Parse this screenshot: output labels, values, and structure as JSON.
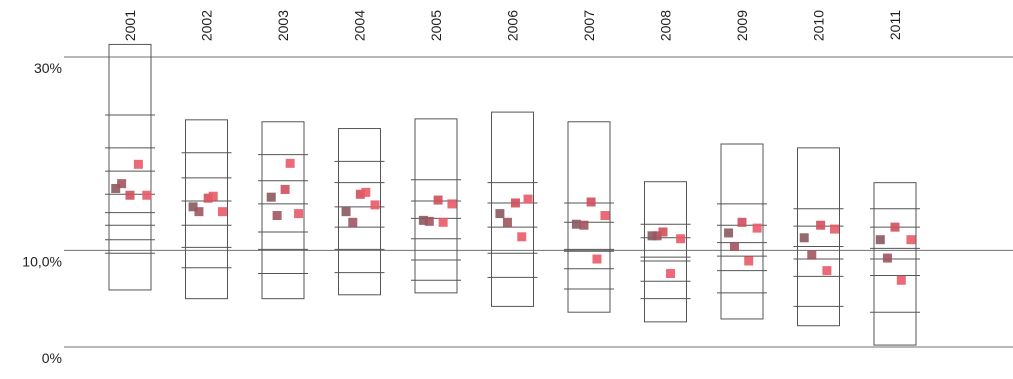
{
  "chart_data": {
    "type": "scatter",
    "title": "",
    "xlabel": "",
    "ylabel": "",
    "ylim": [
      0,
      30
    ],
    "y_axis_labels": [
      {
        "value": 30,
        "label": "30%"
      },
      {
        "value": 10,
        "label": "10,0%"
      },
      {
        "value": 0,
        "label": "0%"
      }
    ],
    "reference_lines": [
      30,
      10,
      0
    ],
    "categories": [
      "2001",
      "2002",
      "2003",
      "2004",
      "2005",
      "2006",
      "2007",
      "2008",
      "2009",
      "2010",
      "2011"
    ],
    "series_colors": [
      "#8a5a5e",
      "#a05460",
      "#cf4f5c",
      "#e85a68"
    ],
    "groups": [
      {
        "box": [
          5.9,
          31.3
        ],
        "ticks": [
          24.0,
          20.6,
          18.2,
          15.8,
          13.9,
          12.6,
          11.1,
          9.7
        ],
        "points": [
          [
            0.16,
            16.4
          ],
          [
            0.3,
            16.9
          ],
          [
            0.5,
            15.7
          ],
          [
            0.7,
            18.9
          ],
          [
            0.9,
            15.7
          ]
        ]
      },
      {
        "box": [
          5.0,
          23.5
        ],
        "ticks": [
          20.1,
          17.5,
          15.1,
          12.6,
          10.3,
          8.2
        ],
        "points": [
          [
            0.18,
            14.5
          ],
          [
            0.32,
            14.0
          ],
          [
            0.54,
            15.4
          ],
          [
            0.66,
            15.6
          ],
          [
            0.88,
            14.0
          ]
        ]
      },
      {
        "box": [
          5.0,
          23.3
        ],
        "ticks": [
          19.9,
          17.2,
          14.8,
          11.9,
          10.1,
          7.6
        ],
        "points": [
          [
            0.22,
            15.5
          ],
          [
            0.36,
            13.6
          ],
          [
            0.55,
            16.3
          ],
          [
            0.67,
            19.0
          ],
          [
            0.87,
            13.8
          ]
        ]
      },
      {
        "box": [
          5.4,
          22.6
        ],
        "ticks": [
          19.2,
          17.0,
          14.5,
          12.4,
          10.1,
          7.7
        ],
        "points": [
          [
            0.18,
            14.0
          ],
          [
            0.34,
            12.9
          ],
          [
            0.52,
            15.8
          ],
          [
            0.65,
            16.0
          ],
          [
            0.87,
            14.7
          ]
        ]
      },
      {
        "box": [
          5.6,
          23.6
        ],
        "ticks": [
          17.3,
          15.1,
          13.3,
          11.2,
          9.0,
          6.9
        ],
        "points": [
          [
            0.2,
            13.1
          ],
          [
            0.34,
            13.0
          ],
          [
            0.55,
            15.2
          ],
          [
            0.67,
            12.9
          ],
          [
            0.88,
            14.8
          ]
        ]
      },
      {
        "box": [
          4.2,
          24.3
        ],
        "ticks": [
          17.0,
          14.9,
          12.4,
          9.7,
          7.2
        ],
        "points": [
          [
            0.2,
            13.8
          ],
          [
            0.38,
            12.9
          ],
          [
            0.57,
            14.9
          ],
          [
            0.72,
            11.4
          ],
          [
            0.87,
            15.3
          ]
        ]
      },
      {
        "box": [
          3.6,
          23.3
        ],
        "ticks": [
          14.9,
          12.9,
          10.1,
          9.9,
          8.1,
          6.0
        ],
        "points": [
          [
            0.2,
            12.7
          ],
          [
            0.38,
            12.6
          ],
          [
            0.55,
            15.0
          ],
          [
            0.69,
            9.1
          ],
          [
            0.88,
            13.6
          ]
        ]
      },
      {
        "box": [
          2.6,
          17.1
        ],
        "ticks": [
          12.7,
          11.3,
          9.3,
          8.9,
          6.8,
          5.0
        ],
        "points": [
          [
            0.18,
            11.5
          ],
          [
            0.3,
            11.5
          ],
          [
            0.44,
            11.9
          ],
          [
            0.62,
            7.6
          ],
          [
            0.86,
            11.2
          ]
        ]
      },
      {
        "box": [
          2.9,
          21.0
        ],
        "ticks": [
          14.8,
          12.6,
          10.8,
          9.4,
          7.9,
          5.6
        ],
        "points": [
          [
            0.18,
            11.8
          ],
          [
            0.32,
            10.4
          ],
          [
            0.5,
            12.9
          ],
          [
            0.66,
            8.9
          ],
          [
            0.86,
            12.3
          ]
        ]
      },
      {
        "box": [
          2.2,
          20.6
        ],
        "ticks": [
          14.3,
          12.5,
          10.4,
          9.1,
          7.3,
          4.2
        ],
        "points": [
          [
            0.16,
            11.3
          ],
          [
            0.34,
            9.5
          ],
          [
            0.55,
            12.6
          ],
          [
            0.7,
            7.9
          ],
          [
            0.88,
            12.2
          ]
        ]
      },
      {
        "box": [
          0.2,
          17.0
        ],
        "ticks": [
          14.3,
          12.4,
          10.2,
          9.1,
          7.4,
          3.6
        ],
        "points": [
          [
            0.15,
            11.1
          ],
          [
            0.32,
            9.2
          ],
          [
            0.5,
            12.4
          ],
          [
            0.65,
            6.9
          ],
          [
            0.88,
            11.1
          ]
        ]
      }
    ]
  }
}
